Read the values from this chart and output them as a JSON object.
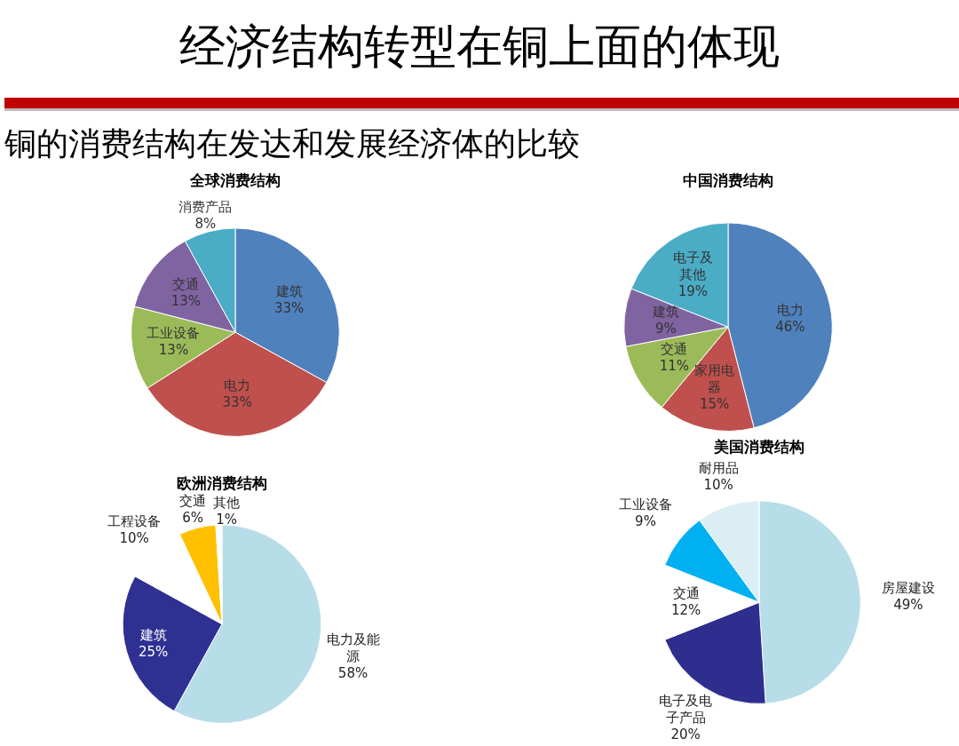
{
  "chart_data": [
    {
      "type": "other",
      "title": "经济结构转型在铜上面的体现",
      "subtitle": "铜的消费结构在发达和发展经济体的比较"
    },
    {
      "type": "pie",
      "title": "全球消费结构",
      "categories": [
        "建筑",
        "电力",
        "工业设备",
        "交通",
        "消费产品"
      ],
      "values": [
        33,
        33,
        13,
        13,
        8
      ],
      "value_labels": [
        "33%",
        "33%",
        "13%",
        "13%",
        "8%"
      ],
      "colors": [
        "#4f81bd",
        "#c0504d",
        "#9bbb59",
        "#8064a2",
        "#4bacc6"
      ]
    },
    {
      "type": "pie",
      "title": "中国消费结构",
      "categories": [
        "电力",
        "家用电器",
        "交通",
        "建筑",
        "电子及其他"
      ],
      "values": [
        46,
        15,
        11,
        9,
        19
      ],
      "value_labels": [
        "46%",
        "15%",
        "11%",
        "9%",
        "19%"
      ],
      "colors": [
        "#4f81bd",
        "#c0504d",
        "#9bbb59",
        "#8064a2",
        "#4bacc6"
      ]
    },
    {
      "type": "pie",
      "title": "欧洲消费结构",
      "categories": [
        "电力及能源",
        "建筑",
        "工程设备",
        "交通",
        "其他"
      ],
      "values": [
        58,
        25,
        10,
        6,
        1
      ],
      "value_labels": [
        "58%",
        "25%",
        "10%",
        "6%",
        "1%"
      ],
      "colors": [
        "#b7dde8",
        "#2e3192",
        "#ffffff",
        "#ffc000",
        "#ffffff"
      ]
    },
    {
      "type": "pie",
      "title": "美国消费结构",
      "categories": [
        "房屋建设",
        "电子及电子产品",
        "交通",
        "工业设备",
        "耐用品"
      ],
      "values": [
        49,
        20,
        12,
        9,
        10
      ],
      "value_labels": [
        "49%",
        "20%",
        "12%",
        "9%",
        "10%"
      ],
      "colors": [
        "#b7dde8",
        "#2e2e8f",
        "#ffffff",
        "#00b0f0",
        "#dbeef3"
      ]
    }
  ]
}
